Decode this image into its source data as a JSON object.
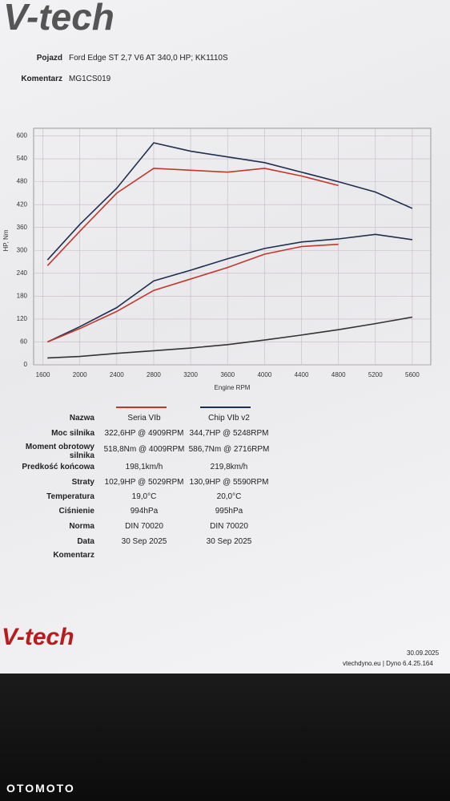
{
  "header": {
    "logo": "V-tech",
    "rows": [
      [
        "Pojazd",
        "Ford Edge ST 2,7 V6 AT 340,0 HP; KK1110S"
      ],
      [
        "Komentarz",
        "MG1CS019"
      ]
    ]
  },
  "chart_data": {
    "type": "line",
    "x_label": "Engine RPM",
    "y_label": "HP, Nm",
    "x": [
      1650,
      2000,
      2400,
      2800,
      3200,
      3600,
      4000,
      4400,
      4800,
      5200,
      5600
    ],
    "series": [
      {
        "color": "#1f2f4f",
        "values": [
          275,
          368,
          463,
          582,
          560,
          545,
          530,
          505,
          480,
          453,
          410
        ]
      },
      {
        "color": "#c0392b",
        "values": [
          260,
          350,
          450,
          515,
          510,
          505,
          515,
          495,
          470,
          null,
          null
        ]
      },
      {
        "color": "#1f2f4f",
        "values": [
          60,
          100,
          150,
          220,
          248,
          278,
          305,
          322,
          330,
          342,
          328
        ]
      },
      {
        "color": "#c0392b",
        "values": [
          60,
          95,
          140,
          195,
          225,
          255,
          290,
          310,
          316,
          null,
          null
        ]
      },
      {
        "color": "#333333",
        "values": [
          18,
          22,
          30,
          37,
          44,
          53,
          65,
          78,
          92,
          108,
          125
        ]
      }
    ],
    "xlim": [
      1500,
      5800
    ],
    "xticks": [
      1600,
      2000,
      2400,
      2800,
      3200,
      3600,
      4000,
      4400,
      4800,
      5200,
      5600
    ],
    "ylim": [
      0,
      620
    ],
    "yticks": [
      0,
      60,
      120,
      180,
      240,
      300,
      360,
      420,
      480,
      540,
      600
    ],
    "grid": true
  },
  "table": {
    "rows": [
      [
        "Nazwa",
        "Seria VIb",
        "Chip VIb v2"
      ],
      [
        "Moc silnika",
        "322,6HP @ 4909RPM",
        "344,7HP @ 5248RPM"
      ],
      [
        "Moment obrotowy silnika",
        "518,8Nm @ 4009RPM",
        "586,7Nm @ 2716RPM"
      ],
      [
        "Predkość końcowa",
        "198,1km/h",
        "219,8km/h"
      ],
      [
        "Straty",
        "102,9HP @ 5029RPM",
        "130,9HP @ 5590RPM"
      ],
      [
        "Temperatura",
        "19,0°C",
        "20,0°C"
      ],
      [
        "Ciśnienie",
        "994hPa",
        "995hPa"
      ],
      [
        "Norma",
        "DIN 70020",
        "DIN 70020"
      ],
      [
        "Data",
        "30 Sep 2025",
        "30 Sep 2025"
      ],
      [
        "Komentarz"
      ]
    ]
  },
  "footer": {
    "logo": "V-tech",
    "date": "30.09.2025",
    "site": "vtechdyno.eu | Dyno 6.4.25.164",
    "watermark": "OTOMOTO"
  }
}
